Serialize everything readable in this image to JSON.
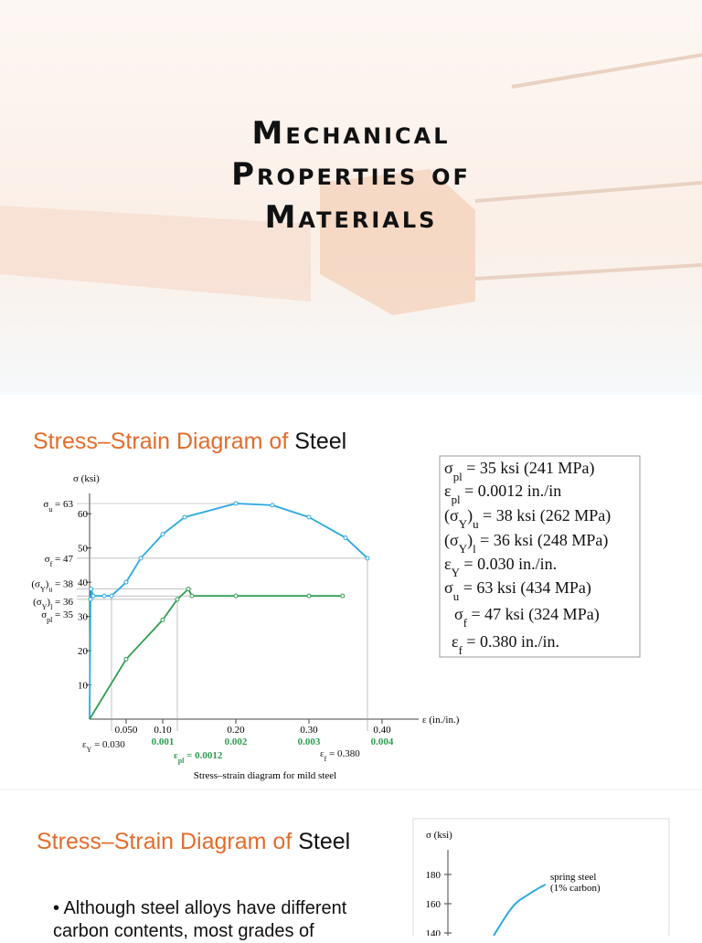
{
  "title_slide": {
    "title_lines": [
      "Mechanical",
      "Properties of",
      "Materials"
    ]
  },
  "slide2": {
    "heading": {
      "colored": "Stress–Strain Diagram of ",
      "plain": "Steel"
    },
    "figure": {
      "type": "line",
      "y_label": "σ (ksi)",
      "x_label": "ε (in./in.)",
      "caption": "Stress–strain diagram for mild steel",
      "ylim": [
        0,
        66
      ],
      "yticks": [
        10,
        20,
        30,
        40,
        50,
        60
      ],
      "xlim": [
        0,
        0.45
      ],
      "xticks": [
        {
          "value": 0.05,
          "label": "0.050"
        },
        {
          "value": 0.1,
          "label": "0.10"
        },
        {
          "value": 0.2,
          "label": "0.20"
        },
        {
          "value": 0.3,
          "label": "0.30"
        },
        {
          "value": 0.4,
          "label": "0.40"
        }
      ],
      "x2ticks": [
        0.001,
        0.002,
        0.003,
        0.004
      ],
      "series": [
        {
          "color": "#29a9e0",
          "x": [
            0,
            0.0012,
            0.002,
            0.005,
            0.02,
            0.03,
            0.05,
            0.07,
            0.1,
            0.13,
            0.2,
            0.25,
            0.3,
            0.35,
            0.38
          ],
          "values": [
            0,
            35,
            38,
            36,
            36,
            36,
            40,
            47,
            54,
            59,
            63,
            62.5,
            59,
            53,
            47
          ]
        },
        {
          "color": "#2e9e4f",
          "axis": "x2",
          "x": [
            0,
            0.0005,
            0.001,
            0.0012,
            0.00135,
            0.0014,
            0.002,
            0.003,
            0.00346
          ],
          "values": [
            0,
            17.5,
            29,
            35,
            38,
            36,
            36,
            36,
            36
          ]
        }
      ],
      "levels": [
        {
          "value": 63,
          "label": [
            "σ",
            {
              "sub": "u"
            },
            " = 63"
          ]
        },
        {
          "value": 47,
          "label": [
            "σ",
            {
              "sub": "f"
            },
            " = 47"
          ]
        },
        {
          "value": 38,
          "label": [
            "(σ",
            {
              "sub": "Y"
            },
            ")",
            {
              "sub": "u"
            },
            " = 38"
          ]
        },
        {
          "value": 36,
          "label": [
            "(σ",
            {
              "sub": "Y"
            },
            ")",
            {
              "sub": "l"
            },
            " = 36"
          ]
        },
        {
          "value": 35,
          "label": [
            "σ",
            {
              "sub": "pl"
            },
            " = 35"
          ]
        }
      ],
      "strain_marks": [
        {
          "value": 0.03,
          "label": [
            "ε",
            {
              "sub": "Y"
            },
            " = 0.030"
          ]
        },
        {
          "value": 0.0012,
          "axis": "x2",
          "label": [
            "ε",
            {
              "sub": "pl"
            },
            " = 0.0012"
          ]
        },
        {
          "value": 0.38,
          "label": [
            "ε",
            {
              "sub": "f"
            },
            " = 0.380"
          ]
        }
      ]
    },
    "properties": [
      [
        "σ",
        {
          "sub": "pl"
        },
        " = 35 ksi (241 MPa)"
      ],
      [
        "ε",
        {
          "sub": "pl"
        },
        " = 0.0012 in./in"
      ],
      [
        "(σ",
        {
          "sub": "Y"
        },
        ")",
        {
          "sub": "u"
        },
        " = 38 ksi (262 MPa)"
      ],
      [
        "(σ",
        {
          "sub": "Y"
        },
        ")",
        {
          "sub": "l"
        },
        " = 36 ksi (248 MPa)"
      ],
      [
        "ε",
        {
          "sub": "Y"
        },
        " = 0.030 in./in."
      ],
      [
        "σ",
        {
          "sub": "u"
        },
        " = 63 ksi (434 MPa)"
      ],
      [
        "σ",
        {
          "sub": "f"
        },
        " = 47 ksi (324 MPa)"
      ],
      [
        "ε",
        {
          "sub": "f"
        },
        " = 0.380 in./in."
      ]
    ]
  },
  "slide3": {
    "heading": {
      "colored": "Stress–Strain Diagram of ",
      "plain": "Steel"
    },
    "bullet": "Although steel alloys have different carbon contents, most grades of",
    "figure": {
      "y_label": "σ (ksi)",
      "yticks": [
        140,
        160,
        180
      ],
      "curve_label": [
        "spring steel",
        "(1% carbon)"
      ]
    }
  }
}
